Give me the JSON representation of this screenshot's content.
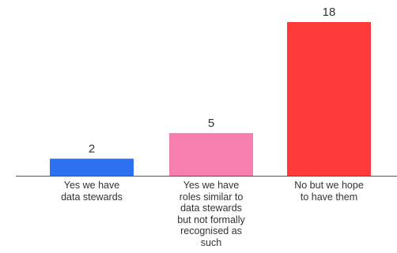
{
  "chart_data": {
    "type": "bar",
    "categories": [
      "Yes we have data stewards",
      "Yes we have roles similar to data stewards but not formally recognised as such",
      "No but we hope to have them"
    ],
    "category_lines": [
      [
        "Yes we have",
        "data stewards"
      ],
      [
        "Yes we have",
        "roles similar to",
        "data stewards",
        "but not formally",
        "recognised as",
        "such"
      ],
      [
        "No but we hope",
        "to have them"
      ]
    ],
    "values": [
      2,
      5,
      18
    ],
    "data_labels": [
      "2",
      "5",
      "18"
    ],
    "colors": [
      "#2f6ff2",
      "#f77fb0",
      "#fc3b3a"
    ],
    "axis_color": "#555555",
    "ylim": [
      0,
      18
    ],
    "grid": false,
    "legend": "none",
    "title": "",
    "xlabel": "",
    "ylabel": ""
  }
}
